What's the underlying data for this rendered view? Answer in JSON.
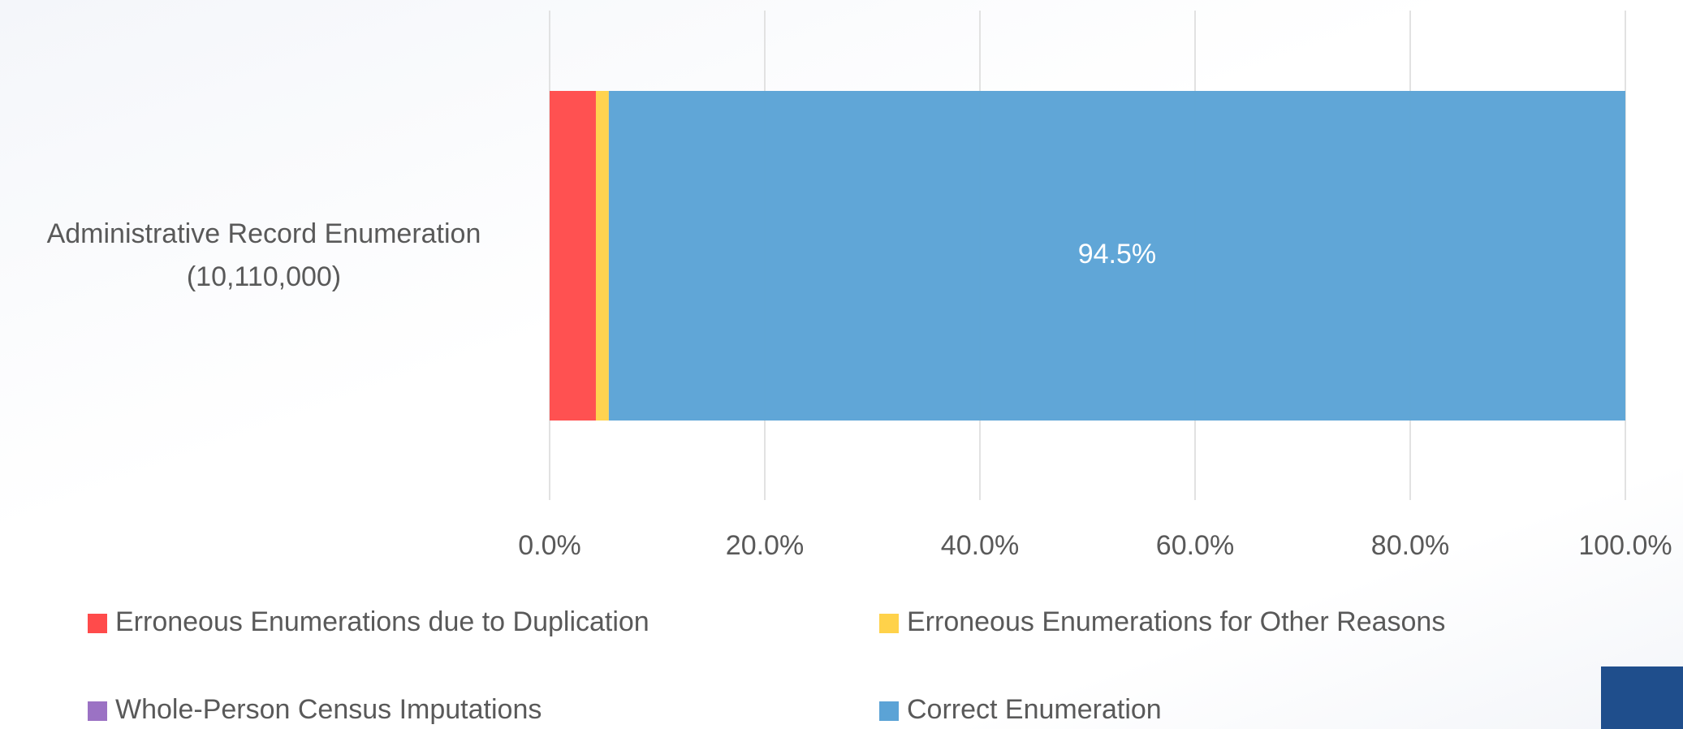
{
  "chart_data": {
    "type": "stacked_barh",
    "categories": [
      "Administrative Record Enumeration\n(10,110,000)"
    ],
    "series": [
      {
        "name": "Erroneous Enumerations due to Duplication",
        "color": "#ff4b4b",
        "values": [
          4.3
        ]
      },
      {
        "name": "Erroneous Enumerations for Other Reasons",
        "color": "#ffd24a",
        "values": [
          1.2
        ]
      },
      {
        "name": "Whole-Person Census Imputations",
        "color": "#9b72c4",
        "values": [
          0
        ]
      },
      {
        "name": "Correct Enumeration",
        "color": "#5ba3d6",
        "values": [
          94.5
        ],
        "value_labels": [
          "94.5%"
        ]
      }
    ],
    "xlim": [
      0,
      100
    ],
    "xticks": [
      {
        "value": 0,
        "label": "0.0%"
      },
      {
        "value": 20,
        "label": "20.0%"
      },
      {
        "value": 40,
        "label": "40.0%"
      },
      {
        "value": 60,
        "label": "60.0%"
      },
      {
        "value": 80,
        "label": "80.0%"
      },
      {
        "value": 100,
        "label": "100.0%"
      }
    ],
    "grid": true,
    "legend": "bottom"
  }
}
